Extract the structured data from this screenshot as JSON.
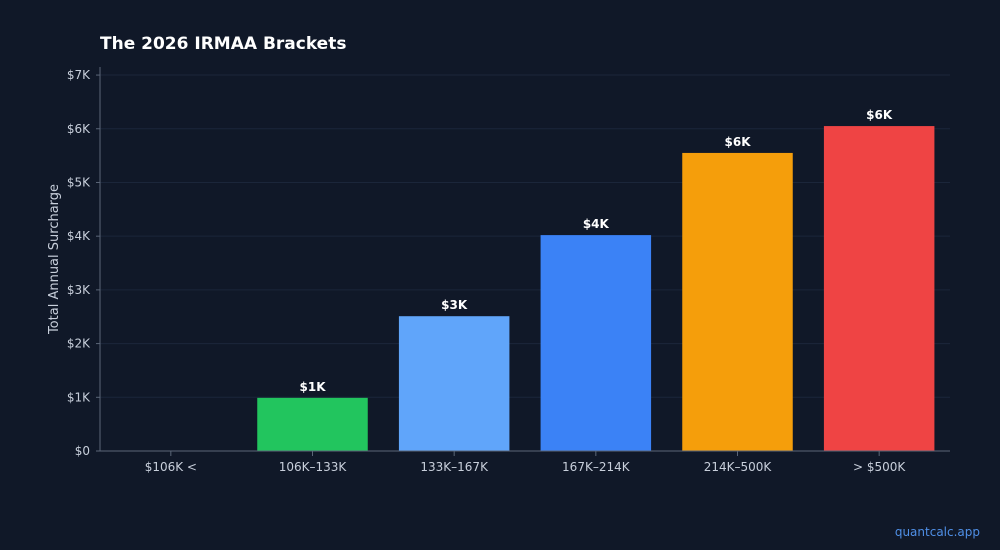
{
  "chart_data": {
    "type": "bar",
    "title": "The 2026 IRMAA Brackets",
    "xlabel": "",
    "ylabel": "Total Annual Surcharge",
    "categories": [
      "$106K <",
      "106K–133K",
      "133K–167K",
      "167K–214K",
      "214K–500K",
      "> $500K"
    ],
    "values": [
      0,
      990,
      2510,
      4020,
      5550,
      6050
    ],
    "data_labels": [
      "",
      "$1K",
      "$3K",
      "$4K",
      "$6K",
      "$6K"
    ],
    "colors": [
      "#22c55e",
      "#22c55e",
      "#60a5fa",
      "#3b82f6",
      "#f59e0b",
      "#ef4444"
    ],
    "ylim": [
      0,
      7150
    ],
    "yticks": [
      0,
      1000,
      2000,
      3000,
      4000,
      5000,
      6000,
      7000
    ],
    "ytick_labels": [
      "$0",
      "$1K",
      "$2K",
      "$3K",
      "$4K",
      "$5K",
      "$6K",
      "$7K"
    ],
    "grid": true,
    "background": "#101828"
  },
  "footer": {
    "watermark": "quantcalc.app"
  }
}
